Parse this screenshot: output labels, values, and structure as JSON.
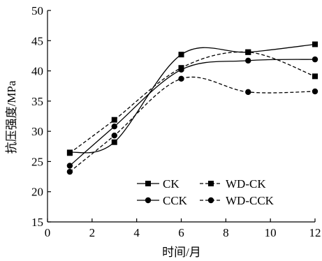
{
  "chart_data": {
    "type": "line",
    "xlabel": "时间/月",
    "ylabel": "抗压强度/MPa",
    "xlim": [
      0,
      12
    ],
    "ylim": [
      15,
      50
    ],
    "xticks": [
      0,
      2,
      4,
      6,
      8,
      10,
      12
    ],
    "yticks": [
      15,
      20,
      25,
      30,
      35,
      40,
      45,
      50
    ],
    "grid": false,
    "legend_position": "lower-right",
    "x": [
      1,
      3,
      6,
      9,
      12
    ],
    "series": [
      {
        "name": "CK",
        "values": [
          26.5,
          28.2,
          42.7,
          43.1,
          44.4
        ],
        "marker": "square",
        "dash": "solid",
        "color": "#000000"
      },
      {
        "name": "WD-CK",
        "values": [
          26.4,
          31.9,
          40.5,
          43.1,
          39.1
        ],
        "marker": "square",
        "dash": "dashed",
        "color": "#000000"
      },
      {
        "name": "CCK",
        "values": [
          24.3,
          30.8,
          40.2,
          41.7,
          41.9
        ],
        "marker": "circle",
        "dash": "solid",
        "color": "#000000"
      },
      {
        "name": "WD-CCK",
        "values": [
          23.3,
          29.3,
          38.7,
          36.5,
          36.6
        ],
        "marker": "circle",
        "dash": "dashed",
        "color": "#000000"
      }
    ]
  }
}
